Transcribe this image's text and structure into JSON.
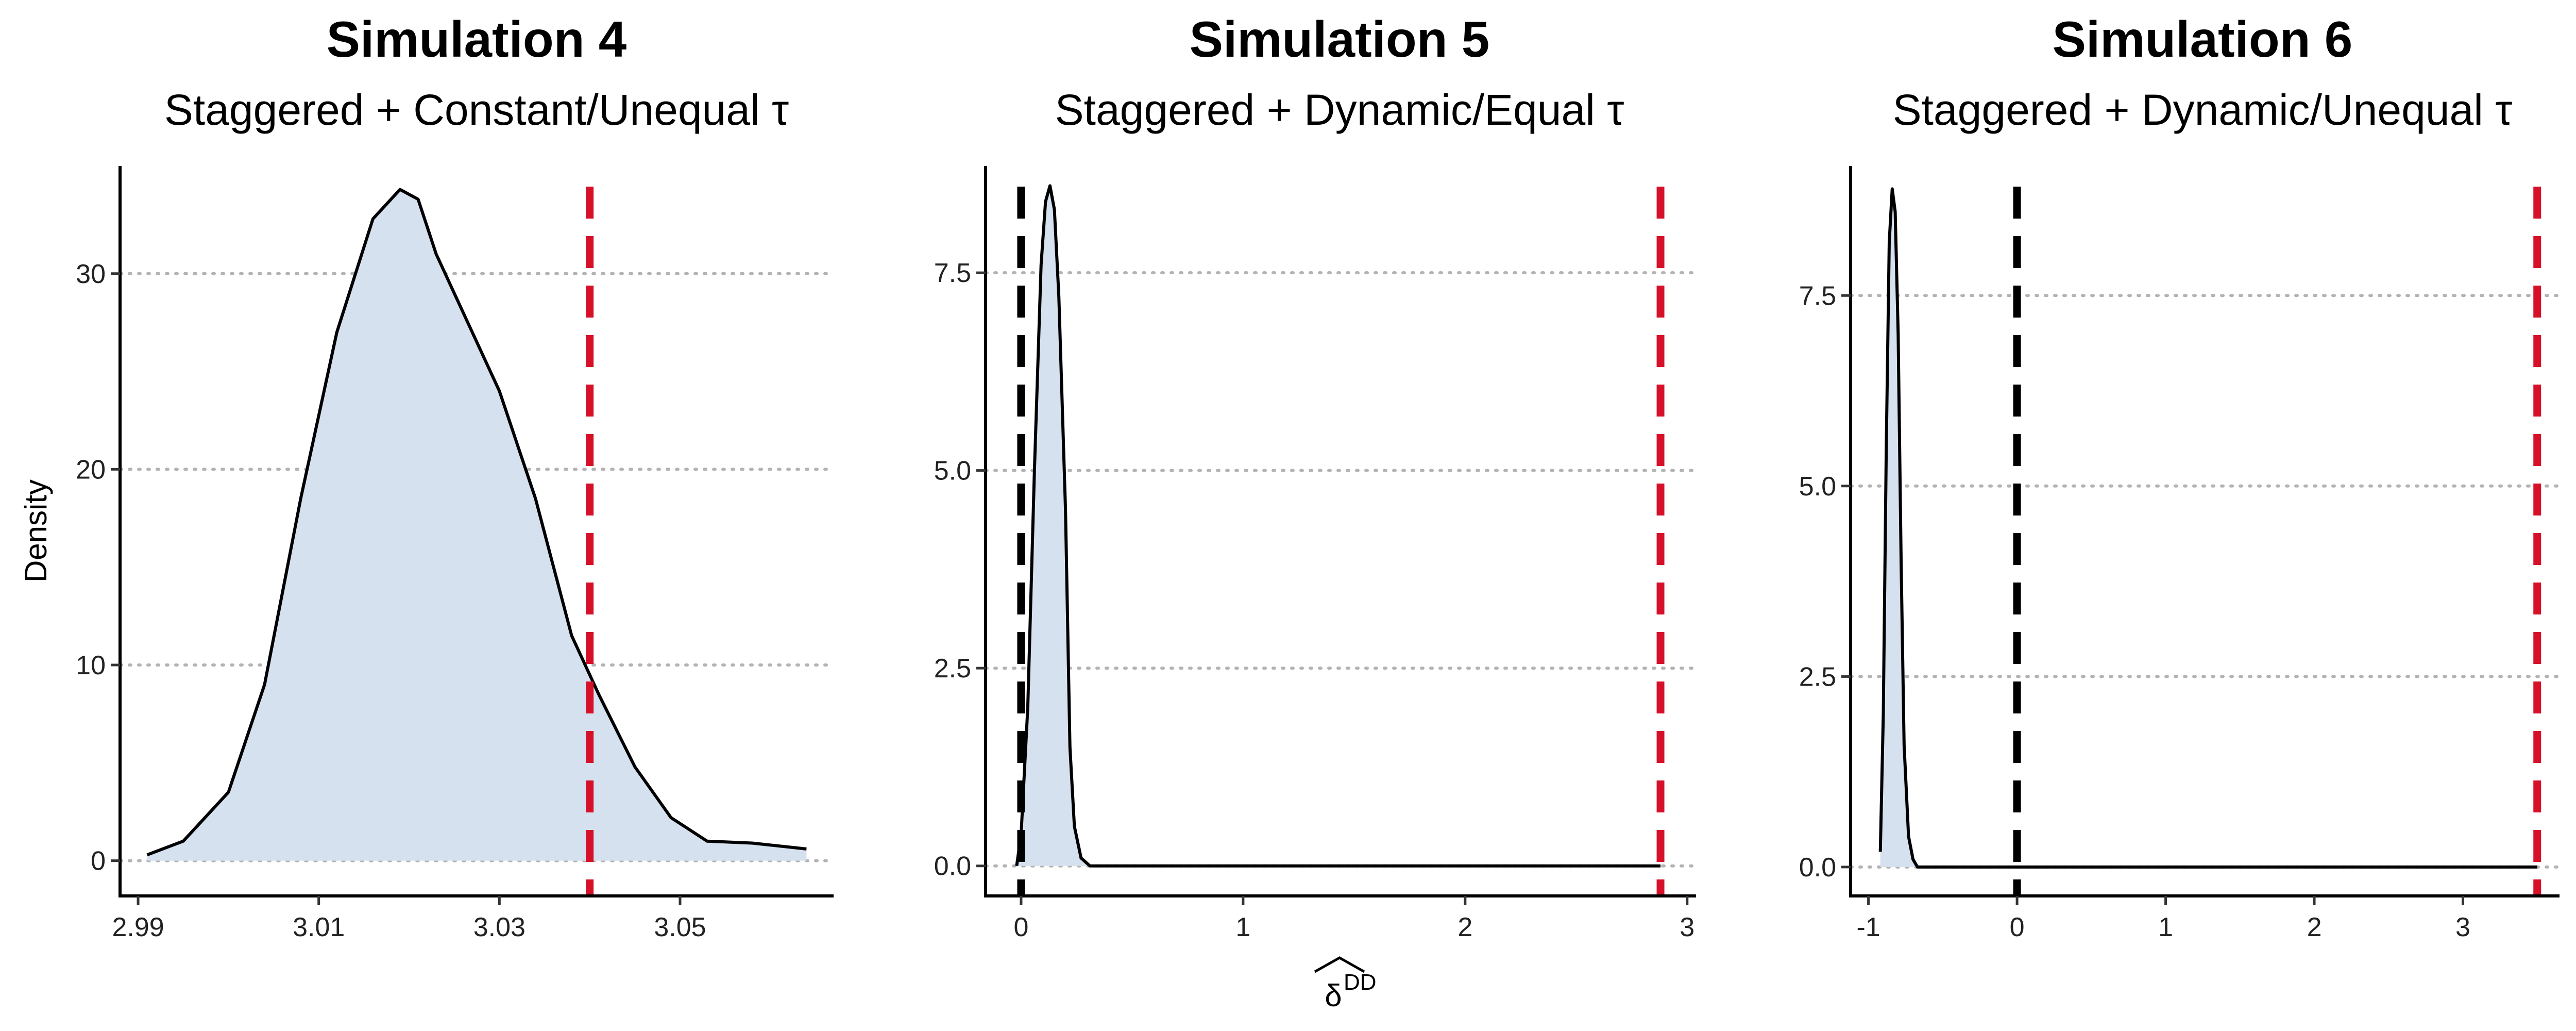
{
  "figure": {
    "ylabel": "Density",
    "xlabel_symbol": "δ",
    "xlabel_superscript": "DD"
  },
  "chart_data": [
    {
      "type": "area",
      "title": "Simulation 4",
      "subtitle": "Staggered + Constant/Unequal τ",
      "ylabel": "Density",
      "xlim": [
        2.988,
        3.067
      ],
      "ylim": [
        -1.8,
        35.5
      ],
      "xticks": [
        2.99,
        3.01,
        3.03,
        3.05
      ],
      "xtick_labels": [
        "2.99",
        "3.01",
        "3.03",
        "3.05"
      ],
      "yticks": [
        0,
        10,
        20,
        30
      ],
      "ytick_labels": [
        "0",
        "10",
        "20",
        "30"
      ],
      "grid": "horizontal dotted",
      "fill_color": "#d5e1ef",
      "line_color": "#000000",
      "vlines": [
        {
          "x": 3.04,
          "color": "#d7102a"
        }
      ],
      "density": {
        "x": [
          2.991,
          2.995,
          3.0,
          3.004,
          3.008,
          3.012,
          3.016,
          3.019,
          3.021,
          3.023,
          3.026,
          3.03,
          3.034,
          3.038,
          3.041,
          3.045,
          3.049,
          3.053,
          3.058,
          3.064
        ],
        "y": [
          0.3,
          1.0,
          3.5,
          9.0,
          18.5,
          27.0,
          32.8,
          34.3,
          33.8,
          31.0,
          28.0,
          24.0,
          18.5,
          11.5,
          8.5,
          4.8,
          2.2,
          1.0,
          0.9,
          0.6
        ]
      }
    },
    {
      "type": "area",
      "title": "Simulation 5",
      "subtitle": "Staggered + Dynamic/Equal τ",
      "xlim": [
        -0.16,
        3.04
      ],
      "ylim": [
        -0.38,
        8.85
      ],
      "xticks": [
        0,
        1,
        2,
        3
      ],
      "xtick_labels": [
        "0",
        "1",
        "2",
        "3"
      ],
      "yticks": [
        0,
        2.5,
        5,
        7.5
      ],
      "ytick_labels": [
        "0.0",
        "2.5",
        "5.0",
        "7.5"
      ],
      "grid": "horizontal dotted",
      "fill_color": "#d5e1ef",
      "line_color": "#000000",
      "vlines": [
        {
          "x": 0,
          "color": "#000000"
        },
        {
          "x": 2.88,
          "color": "#d7102a"
        }
      ],
      "density": {
        "x": [
          -0.02,
          0.0,
          0.03,
          0.06,
          0.09,
          0.11,
          0.13,
          0.15,
          0.17,
          0.2,
          0.22,
          0.24,
          0.27,
          0.31,
          0.5,
          1.0,
          2.0,
          2.88
        ],
        "y": [
          0.0,
          0.4,
          2.0,
          5.0,
          7.6,
          8.4,
          8.6,
          8.3,
          7.2,
          4.5,
          1.5,
          0.5,
          0.1,
          0.0,
          0.0,
          0.0,
          0.0,
          0.0
        ]
      }
    },
    {
      "type": "area",
      "title": "Simulation 6",
      "subtitle": "Staggered + Dynamic/Unequal τ",
      "xlim": [
        -1.12,
        3.65
      ],
      "ylim": [
        -0.38,
        9.2
      ],
      "xticks": [
        -1,
        0,
        1,
        2,
        3
      ],
      "xtick_labels": [
        "-1",
        "0",
        "1",
        "2",
        "3"
      ],
      "yticks": [
        0,
        2.5,
        5,
        7.5
      ],
      "ytick_labels": [
        "0.0",
        "2.5",
        "5.0",
        "7.5"
      ],
      "grid": "horizontal dotted",
      "fill_color": "#d5e1ef",
      "line_color": "#000000",
      "vlines": [
        {
          "x": 0,
          "color": "#000000"
        },
        {
          "x": 3.5,
          "color": "#d7102a"
        }
      ],
      "density": {
        "x": [
          -0.92,
          -0.9,
          -0.88,
          -0.86,
          -0.84,
          -0.82,
          -0.8,
          -0.78,
          -0.76,
          -0.73,
          -0.7,
          -0.67,
          -0.63,
          -0.5,
          0.5,
          2.0,
          3.5
        ],
        "y": [
          0.2,
          2.0,
          5.5,
          8.2,
          8.9,
          8.6,
          7.0,
          4.0,
          1.6,
          0.4,
          0.1,
          0.0,
          0.0,
          0.0,
          0.0,
          0.0,
          0.0
        ]
      }
    }
  ]
}
